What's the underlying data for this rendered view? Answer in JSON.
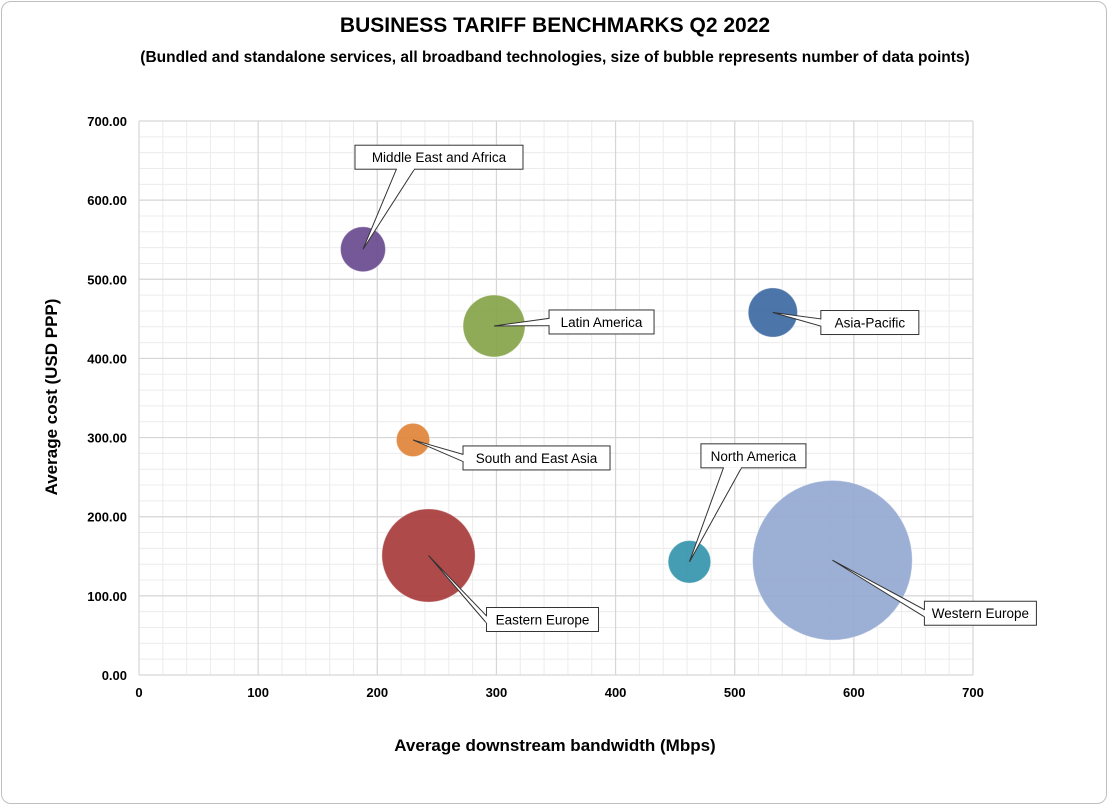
{
  "chart_data": {
    "type": "scatter",
    "subtype": "bubble",
    "title": "BUSINESS TARIFF BENCHMARKS Q2 2022",
    "subtitle": "(Bundled and standalone services, all broadband technologies, size of bubble represents number of data points)",
    "xlabel": "Average downstream bandwidth (Mbps)",
    "ylabel": "Average cost (USD PPP)",
    "xlim": [
      0,
      700
    ],
    "ylim": [
      0,
      700
    ],
    "x_ticks": [
      "0",
      "100",
      "200",
      "300",
      "400",
      "500",
      "600",
      "700"
    ],
    "y_ticks": [
      "0.00",
      "100.00",
      "200.00",
      "300.00",
      "400.00",
      "500.00",
      "600.00",
      "700.00"
    ],
    "grid": true,
    "legend": "none",
    "series": [
      {
        "name": "Middle East and Africa",
        "x": 188,
        "y": 538,
        "size": 1.0,
        "color": "#6a4b8f"
      },
      {
        "name": "Latin America",
        "x": 298,
        "y": 441,
        "size": 1.9,
        "color": "#87a54a"
      },
      {
        "name": "Asia-Pacific",
        "x": 532,
        "y": 458,
        "size": 1.2,
        "color": "#3e6aa4"
      },
      {
        "name": "South and East Asia",
        "x": 230,
        "y": 297,
        "size": 0.55,
        "color": "#e0853a"
      },
      {
        "name": "North America",
        "x": 462,
        "y": 143,
        "size": 0.9,
        "color": "#3696ac"
      },
      {
        "name": "Eastern Europe",
        "x": 243,
        "y": 151,
        "size": 4.3,
        "color": "#a83c3c"
      },
      {
        "name": "Western Europe",
        "x": 582,
        "y": 145,
        "size": 12.6,
        "color": "#94a9d2"
      }
    ]
  }
}
